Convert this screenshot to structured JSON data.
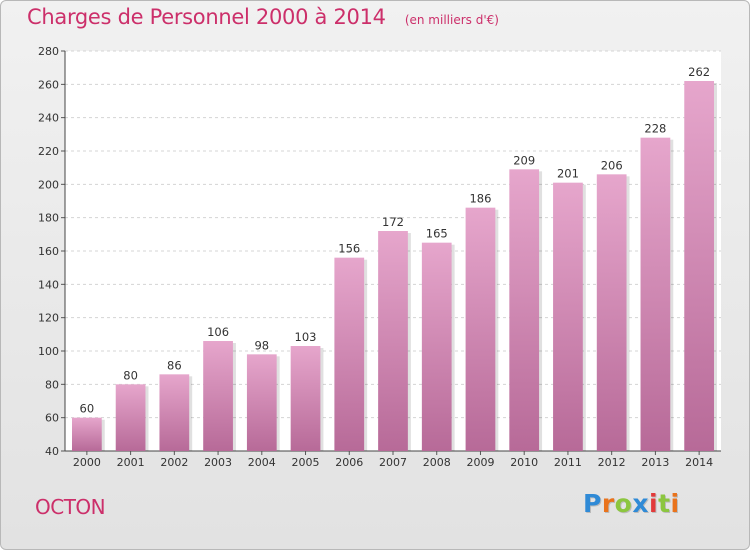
{
  "chart_data": {
    "type": "bar",
    "title": "Charges de Personnel 2000 à 2014",
    "subtitle": "(en milliers d'€)",
    "categories": [
      "2000",
      "2001",
      "2002",
      "2003",
      "2004",
      "2005",
      "2006",
      "2007",
      "2008",
      "2009",
      "2010",
      "2011",
      "2012",
      "2013",
      "2014"
    ],
    "values": [
      60,
      80,
      86,
      106,
      98,
      103,
      156,
      172,
      165,
      186,
      209,
      201,
      206,
      228,
      262
    ],
    "xlabel": "",
    "ylabel": "",
    "ylim": [
      40,
      280
    ],
    "yticks": [
      40,
      60,
      80,
      100,
      120,
      140,
      160,
      180,
      200,
      220,
      240,
      260,
      280
    ],
    "grid": true,
    "bar_color_top": "#e6a6cc",
    "bar_color_bottom": "#b76a98"
  },
  "footer": {
    "commune": "OCTON",
    "logo_letters": [
      "P",
      "r",
      "o",
      "x",
      "i",
      "t",
      "i"
    ]
  }
}
